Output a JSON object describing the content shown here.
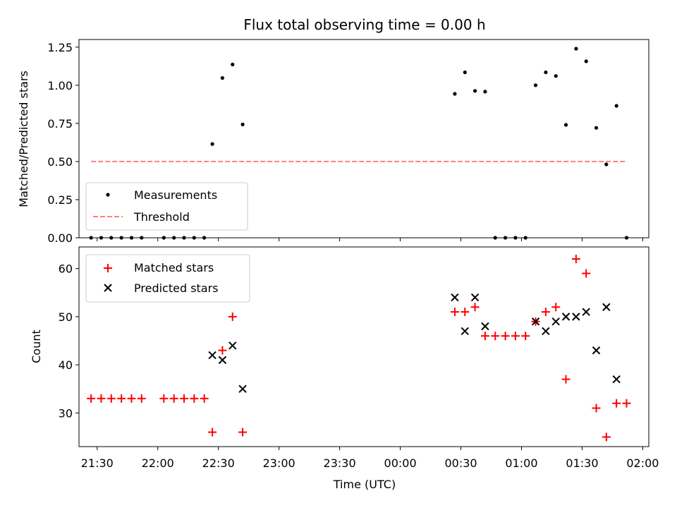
{
  "chart_data": [
    {
      "type": "scatter",
      "title": "Flux total observing time = 0.00 h",
      "xlabel": "",
      "ylabel": "Matched/Predicted stars",
      "xlim": [
        "21:21",
        "02:03"
      ],
      "ylim": [
        0,
        1.3
      ],
      "yticks": [
        "0.00",
        "0.25",
        "0.50",
        "0.75",
        "1.00",
        "1.25"
      ],
      "legend_position": "lower-left",
      "series": [
        {
          "name": "Measurements",
          "marker": "dot",
          "color": "#000000",
          "points": [
            [
              "21:27",
              0
            ],
            [
              "21:32",
              0
            ],
            [
              "21:37",
              0
            ],
            [
              "21:42",
              0
            ],
            [
              "21:47",
              0
            ],
            [
              "21:52",
              0
            ],
            [
              "22:03",
              0
            ],
            [
              "22:08",
              0
            ],
            [
              "22:13",
              0
            ],
            [
              "22:18",
              0
            ],
            [
              "22:23",
              0
            ],
            [
              "22:27",
              0.615
            ],
            [
              "22:32",
              1.048
            ],
            [
              "22:37",
              1.136
            ],
            [
              "22:42",
              0.743
            ],
            [
              "00:27",
              0.944
            ],
            [
              "00:32",
              1.085
            ],
            [
              "00:37",
              0.963
            ],
            [
              "00:42",
              0.958
            ],
            [
              "00:47",
              0
            ],
            [
              "00:52",
              0
            ],
            [
              "00:57",
              0
            ],
            [
              "01:02",
              0
            ],
            [
              "01:07",
              1.0
            ],
            [
              "01:12",
              1.085
            ],
            [
              "01:17",
              1.061
            ],
            [
              "01:22",
              0.74
            ],
            [
              "01:27",
              1.24
            ],
            [
              "01:32",
              1.157
            ],
            [
              "01:37",
              0.721
            ],
            [
              "01:42",
              0.481
            ],
            [
              "01:47",
              0.865
            ],
            [
              "01:52",
              0
            ]
          ]
        },
        {
          "name": "Threshold",
          "style": "dashed-line",
          "color": "#ff7f7f",
          "points": [
            [
              "21:27",
              0.5
            ],
            [
              "01:52",
              0.5
            ]
          ]
        }
      ]
    },
    {
      "type": "scatter",
      "xlabel": "Time (UTC)",
      "ylabel": "Count",
      "xlim": [
        "21:21",
        "02:03"
      ],
      "ylim": [
        23,
        64.5
      ],
      "xticks": [
        "21:30",
        "22:00",
        "22:30",
        "23:00",
        "23:30",
        "00:00",
        "00:30",
        "01:00",
        "01:30",
        "02:00"
      ],
      "yticks": [
        "30",
        "40",
        "50",
        "60"
      ],
      "legend_position": "upper-left",
      "series": [
        {
          "name": "Matched stars",
          "marker": "plus",
          "color": "#ff0000",
          "points": [
            [
              "21:27",
              33
            ],
            [
              "21:32",
              33
            ],
            [
              "21:37",
              33
            ],
            [
              "21:42",
              33
            ],
            [
              "21:47",
              33
            ],
            [
              "21:52",
              33
            ],
            [
              "22:03",
              33
            ],
            [
              "22:08",
              33
            ],
            [
              "22:13",
              33
            ],
            [
              "22:18",
              33
            ],
            [
              "22:23",
              33
            ],
            [
              "22:27",
              26
            ],
            [
              "22:32",
              43
            ],
            [
              "22:37",
              50
            ],
            [
              "22:42",
              26
            ],
            [
              "00:27",
              51
            ],
            [
              "00:32",
              51
            ],
            [
              "00:37",
              52
            ],
            [
              "00:42",
              46
            ],
            [
              "00:47",
              46
            ],
            [
              "00:52",
              46
            ],
            [
              "00:57",
              46
            ],
            [
              "01:02",
              46
            ],
            [
              "01:07",
              49
            ],
            [
              "01:12",
              51
            ],
            [
              "01:17",
              52
            ],
            [
              "01:22",
              37
            ],
            [
              "01:27",
              62
            ],
            [
              "01:32",
              59
            ],
            [
              "01:37",
              31
            ],
            [
              "01:42",
              25
            ],
            [
              "01:47",
              32
            ],
            [
              "01:52",
              32
            ]
          ]
        },
        {
          "name": "Predicted stars",
          "marker": "x",
          "color": "#000000",
          "points": [
            [
              "22:27",
              42
            ],
            [
              "22:32",
              41
            ],
            [
              "22:37",
              44
            ],
            [
              "22:42",
              35
            ],
            [
              "00:27",
              54
            ],
            [
              "00:32",
              47
            ],
            [
              "00:37",
              54
            ],
            [
              "00:42",
              48
            ],
            [
              "01:07",
              49
            ],
            [
              "01:12",
              47
            ],
            [
              "01:17",
              49
            ],
            [
              "01:22",
              50
            ],
            [
              "01:27",
              50
            ],
            [
              "01:32",
              51
            ],
            [
              "01:37",
              43
            ],
            [
              "01:42",
              52
            ],
            [
              "01:47",
              37
            ]
          ]
        }
      ]
    }
  ]
}
